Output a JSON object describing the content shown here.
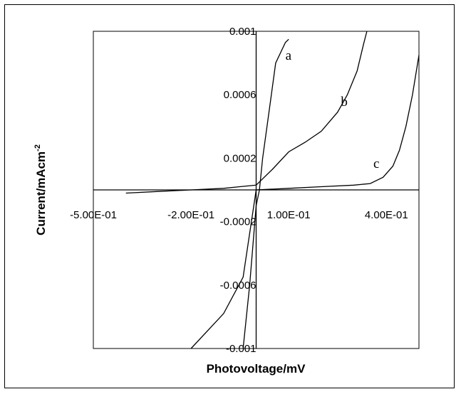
{
  "chart_data": {
    "type": "line",
    "title": "",
    "xlabel": "Photovoltage/mV",
    "ylabel": "Current/mAcm",
    "ylabel_sup": "-2",
    "xlim": [
      -0.5,
      0.5
    ],
    "ylim": [
      -0.001,
      0.001
    ],
    "grid": false,
    "x_tick_labels": [
      {
        "value": -0.5,
        "label": "-5.00E-01"
      },
      {
        "value": -0.2,
        "label": "-2.00E-01"
      },
      {
        "value": 0.1,
        "label": "1.00E-01"
      },
      {
        "value": 0.4,
        "label": "4.00E-01"
      }
    ],
    "y_tick_labels": [
      {
        "value": 0.001,
        "label": "0.001"
      },
      {
        "value": 0.0006,
        "label": "0.0006"
      },
      {
        "value": 0.0002,
        "label": "0.0002"
      },
      {
        "value": -0.0002,
        "label": "-0.0002"
      },
      {
        "value": -0.0006,
        "label": "-0.0006"
      },
      {
        "value": -0.001,
        "label": "-0.001"
      }
    ],
    "series": [
      {
        "name": "a",
        "x": [
          -0.04,
          -0.02,
          0.0,
          0.01,
          0.02,
          0.04,
          0.06,
          0.09,
          0.1
        ],
        "y": [
          -0.001,
          -0.0006,
          -0.0001,
          0.0,
          0.0002,
          0.0005,
          0.0008,
          0.00093,
          0.00095
        ],
        "label_at": [
          0.09,
          0.00082
        ]
      },
      {
        "name": "b",
        "x": [
          -0.4,
          -0.3,
          -0.2,
          -0.1,
          -0.05,
          0.0,
          0.05,
          0.1,
          0.15,
          0.2,
          0.25,
          0.28,
          0.31,
          0.33,
          0.34
        ],
        "y": [
          -2e-05,
          -1e-05,
          0.0,
          1e-05,
          2e-05,
          3e-05,
          0.00013,
          0.00024,
          0.0003,
          0.00037,
          0.00049,
          0.0006,
          0.00075,
          0.00092,
          0.001
        ],
        "label_at": [
          0.26,
          0.00053
        ]
      },
      {
        "name": "c",
        "x": [
          -0.2,
          -0.1,
          -0.04,
          0.0,
          0.1,
          0.2,
          0.3,
          0.35,
          0.39,
          0.42,
          0.44,
          0.46,
          0.48,
          0.5
        ],
        "y": [
          -0.001,
          -0.00078,
          -0.00055,
          0.0,
          1e-05,
          2e-05,
          3e-05,
          4e-05,
          8e-05,
          0.00015,
          0.00025,
          0.0004,
          0.0006,
          0.00085
        ],
        "label_at": [
          0.36,
          0.00014
        ]
      }
    ]
  }
}
